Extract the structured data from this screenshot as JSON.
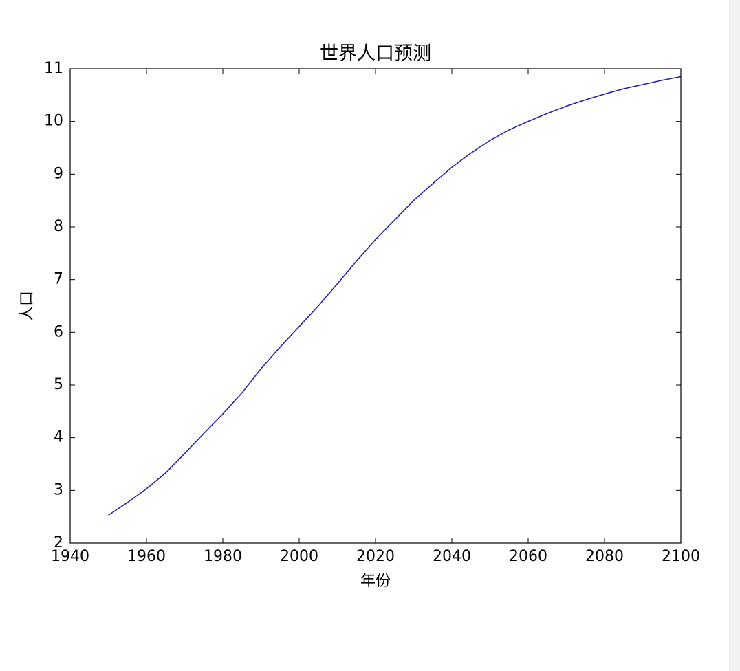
{
  "chart_data": {
    "type": "line",
    "title": "世界人口预测",
    "x_label": "年份",
    "y_label": "人口",
    "x": [
      1950,
      1955,
      1960,
      1965,
      1970,
      1975,
      1980,
      1985,
      1990,
      1995,
      2000,
      2005,
      2010,
      2015,
      2020,
      2025,
      2030,
      2035,
      2040,
      2045,
      2050,
      2055,
      2060,
      2065,
      2070,
      2075,
      2080,
      2085,
      2090,
      2095,
      2100
    ],
    "series": [
      {
        "color": "#2222b0",
        "values": [
          2.53,
          2.77,
          3.03,
          3.33,
          3.7,
          4.08,
          4.45,
          4.85,
          5.31,
          5.72,
          6.11,
          6.5,
          6.92,
          7.35,
          7.76,
          8.13,
          8.5,
          8.82,
          9.13,
          9.4,
          9.64,
          9.84,
          10.0,
          10.15,
          10.29,
          10.41,
          10.52,
          10.62,
          10.7,
          10.78,
          10.85
        ]
      }
    ],
    "xlim": [
      1940,
      2100
    ],
    "xticks": [
      1940,
      1960,
      1980,
      2000,
      2020,
      2040,
      2060,
      2080,
      2100
    ],
    "ylim": [
      2,
      11
    ],
    "yticks": [
      2,
      3,
      4,
      5,
      6,
      7,
      8,
      9,
      10,
      11
    ],
    "grid": false
  }
}
